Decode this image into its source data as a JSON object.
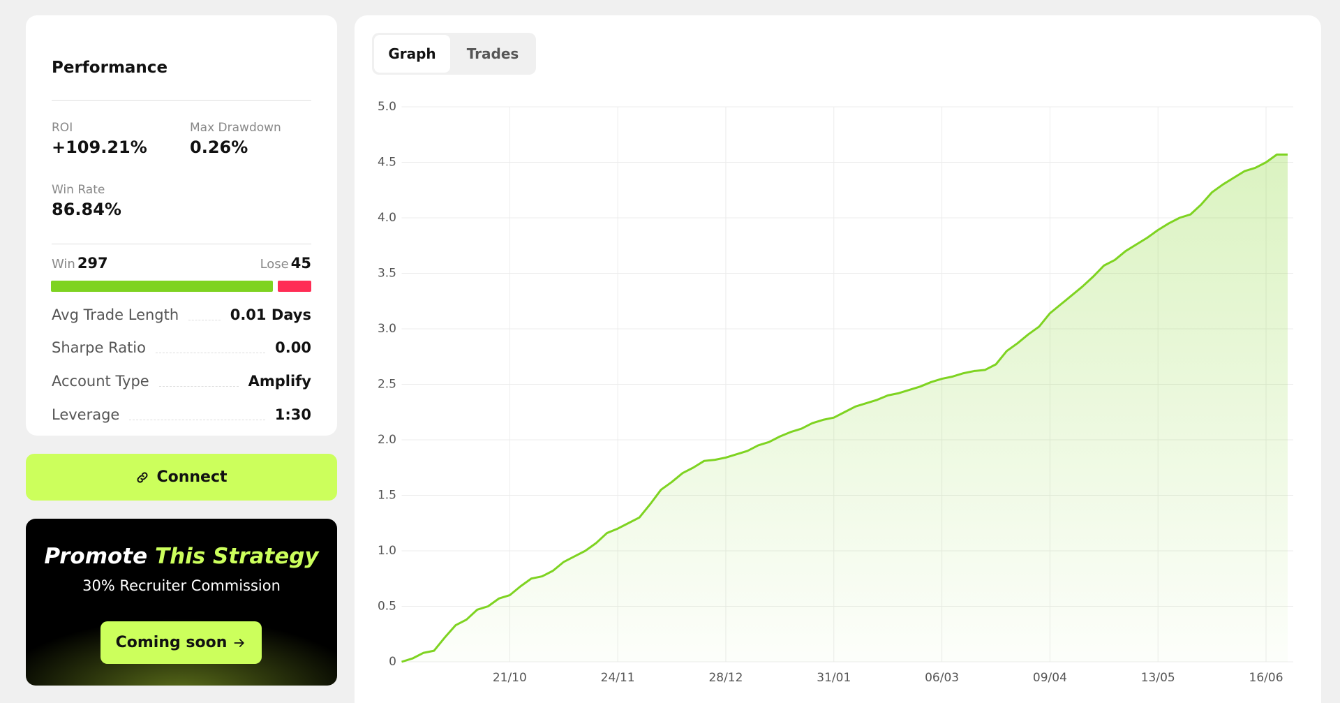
{
  "performance": {
    "title": "Performance",
    "stats": [
      {
        "label": "ROI",
        "value": "+109.21%"
      },
      {
        "label": "Max Drawdown",
        "value": "0.26%"
      },
      {
        "label": "Win Rate",
        "value": "86.84%"
      }
    ],
    "win": {
      "label": "Win",
      "count": 297,
      "color": "#7ed321"
    },
    "lose": {
      "label": "Lose",
      "count": 45,
      "color": "#ff2d55"
    },
    "details": [
      {
        "label": "Avg Trade Length",
        "value": "0.01 Days"
      },
      {
        "label": "Sharpe Ratio",
        "value": "0.00"
      },
      {
        "label": "Account Type",
        "value": "Amplify"
      },
      {
        "label": "Leverage",
        "value": "1:30"
      }
    ]
  },
  "connect": {
    "label": "Connect"
  },
  "promo": {
    "title": "Promote",
    "highlight": "This Strategy",
    "subtitle": "30% Recruiter Commission",
    "button": "Coming soon"
  },
  "tabs": [
    "Graph",
    "Trades"
  ],
  "chart_data": {
    "type": "area",
    "color": "#7ed321",
    "grid": true,
    "categories": [
      null,
      null,
      null,
      null,
      null,
      null,
      null,
      null,
      null,
      null,
      "21/10",
      null,
      null,
      null,
      null,
      null,
      null,
      null,
      null,
      null,
      "24/11",
      null,
      null,
      null,
      null,
      null,
      null,
      null,
      null,
      null,
      "28/12",
      null,
      null,
      null,
      null,
      null,
      null,
      null,
      null,
      null,
      "31/01",
      null,
      null,
      null,
      null,
      null,
      null,
      null,
      null,
      null,
      "06/03",
      null,
      null,
      null,
      null,
      null,
      null,
      null,
      null,
      null,
      "09/04",
      null,
      null,
      null,
      null,
      null,
      null,
      null,
      null,
      null,
      "13/05",
      null,
      null,
      null,
      null,
      null,
      null,
      null,
      null,
      null,
      "16/06",
      null,
      null
    ],
    "values": [
      0,
      0.03,
      0.08,
      0.1,
      0.22,
      0.33,
      0.38,
      0.47,
      0.5,
      0.57,
      0.6,
      0.68,
      0.75,
      0.77,
      0.82,
      0.9,
      0.95,
      1.0,
      1.07,
      1.16,
      1.2,
      1.25,
      1.3,
      1.42,
      1.55,
      1.62,
      1.7,
      1.75,
      1.81,
      1.82,
      1.84,
      1.87,
      1.9,
      1.95,
      1.98,
      2.03,
      2.07,
      2.1,
      2.15,
      2.18,
      2.2,
      2.25,
      2.3,
      2.33,
      2.36,
      2.4,
      2.42,
      2.45,
      2.48,
      2.52,
      2.55,
      2.57,
      2.6,
      2.62,
      2.63,
      2.68,
      2.8,
      2.87,
      2.95,
      3.02,
      3.14,
      3.22,
      3.3,
      3.38,
      3.47,
      3.57,
      3.62,
      3.7,
      3.76,
      3.82,
      3.89,
      3.95,
      4.0,
      4.03,
      4.12,
      4.23,
      4.3,
      4.36,
      4.42,
      4.45,
      4.5,
      4.57,
      4.57
    ],
    "ylim": [
      0,
      5
    ],
    "yticks": [
      0,
      0.5,
      {
        "value": 1,
        "label": "1.0"
      },
      1.5,
      {
        "value": 2,
        "label": "2.0"
      },
      2.5,
      {
        "value": 3,
        "label": "3.0"
      },
      3.5,
      {
        "value": 4,
        "label": "4.0"
      },
      4.5,
      {
        "value": 5,
        "label": "5.0"
      }
    ]
  }
}
